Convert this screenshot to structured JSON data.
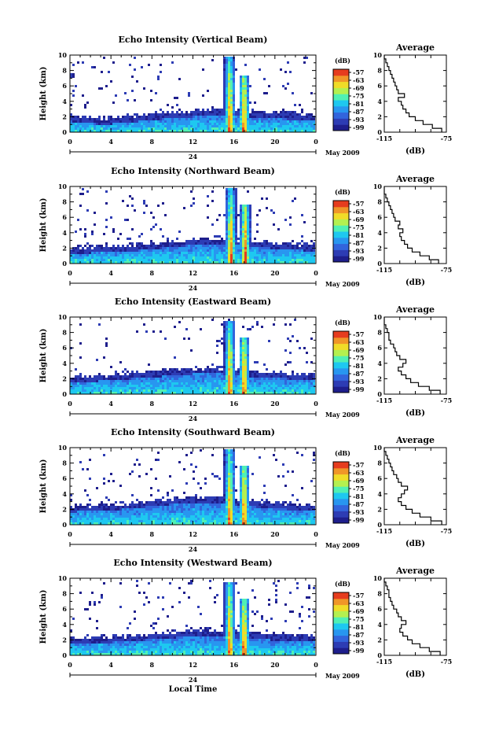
{
  "figure": {
    "xlabel": "Local Time",
    "date_label": "May 2009",
    "day_label": "24",
    "colorbar_unit": "(dB)",
    "colorbar_ticks": [
      "-57",
      "-63",
      "-69",
      "-75",
      "-81",
      "-87",
      "-93",
      "-99"
    ],
    "avg_title": "Average",
    "avg_xlabel": "(dB)",
    "palette": [
      "#1e1e8c",
      "#2d3cb4",
      "#3264dc",
      "#2896f0",
      "#1ec8f0",
      "#50f0b4",
      "#b4f050",
      "#f0dc28",
      "#f09628",
      "#e63c1e"
    ]
  },
  "chart_data": [
    {
      "type": "heatmap",
      "title": "Echo Intensity (Vertical Beam)",
      "ylabel": "Height (km)",
      "xlim": [
        0,
        24
      ],
      "ylim": [
        0,
        10
      ],
      "x_ticks": [
        "0",
        "4",
        "8",
        "12",
        "16",
        "20",
        "0"
      ],
      "y_ticks": [
        "0",
        "2",
        "4",
        "6",
        "8",
        "10"
      ],
      "colorbar_range_dB": [
        -99,
        -57
      ],
      "layer_top_km": [
        2.2,
        2.0,
        1.8,
        1.9,
        2.1,
        2.3,
        2.5,
        2.6,
        2.8,
        3.0,
        3.1,
        2.9,
        2.7,
        2.6,
        2.5,
        2.4,
        2.3
      ],
      "convective_towers": [
        {
          "time_h": 15.6,
          "top_km": 9.8
        },
        {
          "time_h": 17.0,
          "top_km": 7.5
        }
      ],
      "average_profile": {
        "xlim": [
          -115,
          -75
        ],
        "x_ticks": [
          "-115",
          "-75"
        ],
        "y_ticks": [
          "0",
          "2",
          "4",
          "6",
          "8",
          "10"
        ],
        "height_km": [
          0,
          0.5,
          1,
          1.5,
          2,
          2.5,
          3,
          3.5,
          4,
          4.5,
          5,
          5.5,
          6,
          6.5,
          7,
          7.5,
          8,
          8.5,
          9,
          9.5
        ],
        "dB": [
          -78,
          -84,
          -90,
          -95,
          -99,
          -101,
          -103,
          -104,
          -106,
          -102,
          -106,
          -107,
          -108,
          -109,
          -110,
          -111,
          -112,
          -113,
          -114,
          -115
        ]
      }
    },
    {
      "type": "heatmap",
      "title": "Echo Intensity (Northward Beam)",
      "ylabel": "Height (km)",
      "xlim": [
        0,
        24
      ],
      "ylim": [
        0,
        10
      ],
      "x_ticks": [
        "0",
        "4",
        "8",
        "12",
        "16",
        "20",
        "0"
      ],
      "y_ticks": [
        "0",
        "2",
        "4",
        "6",
        "8",
        "10"
      ],
      "colorbar_range_dB": [
        -99,
        -57
      ],
      "layer_top_km": [
        2.0,
        2.1,
        2.3,
        2.2,
        2.4,
        2.6,
        2.8,
        3.0,
        3.2,
        3.4,
        3.3,
        3.1,
        2.9,
        2.8,
        2.7,
        2.5,
        2.4
      ],
      "convective_towers": [
        {
          "time_h": 15.7,
          "top_km": 9.7
        },
        {
          "time_h": 17.1,
          "top_km": 7.6
        }
      ],
      "average_profile": {
        "xlim": [
          -115,
          -75
        ],
        "x_ticks": [
          "-115",
          "-75"
        ],
        "y_ticks": [
          "0",
          "2",
          "4",
          "6",
          "8",
          "10"
        ],
        "height_km": [
          0,
          0.5,
          1,
          1.5,
          2,
          2.5,
          3,
          3.5,
          4,
          4.5,
          5,
          5.5,
          6,
          6.5,
          7,
          7.5,
          8,
          8.5,
          9,
          9.5
        ],
        "dB": [
          -80,
          -86,
          -92,
          -97,
          -100,
          -102,
          -104,
          -105,
          -103,
          -106,
          -105,
          -108,
          -109,
          -110,
          -111,
          -112,
          -113,
          -114,
          -115,
          -115
        ]
      }
    },
    {
      "type": "heatmap",
      "title": "Echo Intensity (Eastward Beam)",
      "ylabel": "Height (km)",
      "xlim": [
        0,
        24
      ],
      "ylim": [
        0,
        10
      ],
      "x_ticks": [
        "0",
        "4",
        "8",
        "12",
        "16",
        "20",
        "0"
      ],
      "y_ticks": [
        "0",
        "2",
        "4",
        "6",
        "8",
        "10"
      ],
      "colorbar_range_dB": [
        -99,
        -57
      ],
      "layer_top_km": [
        2.3,
        2.4,
        2.5,
        2.6,
        2.8,
        3.0,
        3.1,
        3.3,
        3.4,
        3.5,
        3.4,
        3.2,
        3.0,
        2.9,
        2.8,
        2.7,
        2.6
      ],
      "convective_towers": [
        {
          "time_h": 15.6,
          "top_km": 9.5
        },
        {
          "time_h": 17.0,
          "top_km": 7.4
        }
      ],
      "average_profile": {
        "xlim": [
          -115,
          -75
        ],
        "x_ticks": [
          "-115",
          "-75"
        ],
        "y_ticks": [
          "0",
          "2",
          "4",
          "6",
          "8",
          "10"
        ],
        "height_km": [
          0,
          0.5,
          1,
          1.5,
          2,
          2.5,
          3,
          3.5,
          4,
          4.5,
          5,
          5.5,
          6,
          6.5,
          7,
          7.5,
          8,
          8.5,
          9,
          9.5
        ],
        "dB": [
          -79,
          -86,
          -93,
          -98,
          -101,
          -104,
          -106,
          -103,
          -101,
          -105,
          -107,
          -108,
          -109,
          -111,
          -112,
          -112,
          -113,
          -114,
          -115,
          -115
        ]
      }
    },
    {
      "type": "heatmap",
      "title": "Echo Intensity (Southward Beam)",
      "ylabel": "Height (km)",
      "xlim": [
        0,
        24
      ],
      "ylim": [
        0,
        10
      ],
      "x_ticks": [
        "0",
        "4",
        "8",
        "12",
        "16",
        "20",
        "0"
      ],
      "y_ticks": [
        "0",
        "2",
        "4",
        "6",
        "8",
        "10"
      ],
      "colorbar_range_dB": [
        -99,
        -57
      ],
      "layer_top_km": [
        2.4,
        2.6,
        2.5,
        2.7,
        2.9,
        3.1,
        3.3,
        3.5,
        3.6,
        3.7,
        3.5,
        3.3,
        3.1,
        3.0,
        2.8,
        2.7,
        2.6
      ],
      "convective_towers": [
        {
          "time_h": 15.6,
          "top_km": 9.8
        },
        {
          "time_h": 17.0,
          "top_km": 7.6
        }
      ],
      "average_profile": {
        "xlim": [
          -115,
          -75
        ],
        "x_ticks": [
          "-115",
          "-75"
        ],
        "y_ticks": [
          "0",
          "2",
          "4",
          "6",
          "8",
          "10"
        ],
        "height_km": [
          0,
          0.5,
          1,
          1.5,
          2,
          2.5,
          3,
          3.5,
          4,
          4.5,
          5,
          5.5,
          6,
          6.5,
          7,
          7.5,
          8,
          8.5,
          9,
          9.5
        ],
        "dB": [
          -78,
          -85,
          -92,
          -97,
          -101,
          -104,
          -106,
          -104,
          -102,
          -100,
          -104,
          -106,
          -107,
          -109,
          -110,
          -111,
          -112,
          -113,
          -114,
          -115
        ]
      }
    },
    {
      "type": "heatmap",
      "title": "Echo Intensity (Westward Beam)",
      "ylabel": "Height (km)",
      "xlim": [
        0,
        24
      ],
      "ylim": [
        0,
        10
      ],
      "x_ticks": [
        "0",
        "4",
        "8",
        "12",
        "16",
        "20",
        "0"
      ],
      "y_ticks": [
        "0",
        "2",
        "4",
        "6",
        "8",
        "10"
      ],
      "colorbar_range_dB": [
        -99,
        -57
      ],
      "layer_top_km": [
        2.2,
        2.3,
        2.4,
        2.5,
        2.6,
        2.8,
        3.0,
        3.1,
        3.3,
        3.4,
        3.2,
        3.0,
        2.9,
        2.8,
        2.7,
        2.6,
        2.5
      ],
      "convective_towers": [
        {
          "time_h": 15.6,
          "top_km": 9.6
        },
        {
          "time_h": 17.0,
          "top_km": 7.5
        }
      ],
      "average_profile": {
        "xlim": [
          -115,
          -75
        ],
        "x_ticks": [
          "-115",
          "-75"
        ],
        "y_ticks": [
          "0",
          "2",
          "4",
          "6",
          "8",
          "10"
        ],
        "height_km": [
          0,
          0.5,
          1,
          1.5,
          2,
          2.5,
          3,
          3.5,
          4,
          4.5,
          5,
          5.5,
          6,
          6.5,
          7,
          7.5,
          8,
          8.5,
          9,
          9.5
        ],
        "dB": [
          -79,
          -86,
          -92,
          -97,
          -100,
          -103,
          -105,
          -104,
          -101,
          -104,
          -106,
          -107,
          -109,
          -110,
          -111,
          -112,
          -112,
          -113,
          -114,
          -115
        ]
      }
    }
  ]
}
